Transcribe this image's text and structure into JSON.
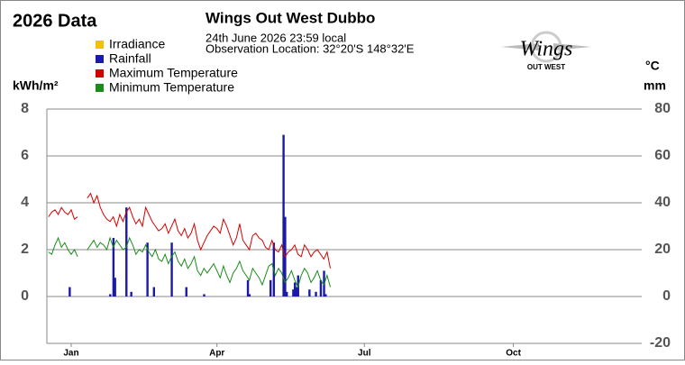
{
  "logo": {
    "text": "Wings",
    "subtext": "OUT WEST"
  },
  "chart_data": {
    "type": "line",
    "title": "2026 Data",
    "station": "Wings Out West Dubbo",
    "subtitle": "24th June 2026  23:59 local",
    "location": "Observation Location: 32°20'S 148°32'E",
    "y_label": "kWh/m²",
    "y2_label": "°C",
    "y2_label_2": "mm",
    "xlim": [
      0,
      365
    ],
    "xticks": [
      {
        "value": 15,
        "label": "Jan"
      },
      {
        "value": 105,
        "label": "Apr"
      },
      {
        "value": 196,
        "label": "Jul"
      },
      {
        "value": 288,
        "label": "Oct"
      }
    ],
    "ylim": [
      -2,
      8
    ],
    "yticks": [
      0,
      2,
      4,
      6,
      8
    ],
    "y2lim": [
      -20,
      80
    ],
    "y2ticks": [
      -20,
      0,
      20,
      40,
      60,
      80
    ],
    "grid": true,
    "x": [
      1,
      3,
      5,
      7,
      9,
      11,
      13,
      15,
      17,
      19,
      21,
      23,
      25,
      27,
      29,
      31,
      33,
      35,
      37,
      39,
      41,
      43,
      45,
      47,
      49,
      51,
      53,
      55,
      57,
      59,
      61,
      63,
      65,
      67,
      69,
      71,
      73,
      75,
      77,
      79,
      81,
      83,
      85,
      87,
      89,
      91,
      93,
      95,
      97,
      99,
      101,
      103,
      105,
      107,
      109,
      111,
      113,
      115,
      117,
      119,
      121,
      123,
      125,
      127,
      129,
      131,
      133,
      135,
      137,
      139,
      141,
      143,
      145,
      147,
      149,
      151,
      153,
      155,
      157,
      159,
      161,
      163,
      165,
      167,
      169,
      171,
      173,
      175
    ],
    "series": [
      {
        "name": "Irradiance",
        "color": "#f2c200",
        "type": "bar",
        "x": [],
        "values": []
      },
      {
        "name": "Rainfall",
        "color": "#1a1aa8",
        "type": "bar",
        "axis": "y2",
        "x": [
          14,
          39,
          41,
          42,
          49,
          52,
          62,
          66,
          77,
          86,
          97,
          124,
          125,
          138,
          140,
          146,
          147,
          148,
          152,
          153,
          154,
          155,
          162,
          166,
          169,
          171,
          172
        ],
        "values": [
          4,
          1,
          25,
          8,
          38,
          2,
          23,
          4,
          23,
          4,
          1,
          7,
          1,
          7,
          23,
          69,
          34,
          2,
          3,
          6,
          4,
          9,
          3,
          2,
          7,
          11,
          1
        ]
      },
      {
        "name": "Maximum Temperature",
        "color": "#d40000",
        "type": "line",
        "axis": "y2",
        "values": [
          34,
          36,
          37,
          35,
          38,
          36,
          35,
          37,
          33,
          34,
          null,
          null,
          42,
          44,
          40,
          43,
          38,
          35,
          33,
          32,
          34,
          30,
          35,
          32,
          36,
          38,
          34,
          31,
          33,
          30,
          38,
          35,
          32,
          30,
          28,
          29,
          31,
          27,
          30,
          33,
          28,
          26,
          29,
          25,
          27,
          31,
          24,
          20,
          23,
          26,
          28,
          30,
          29,
          27,
          33,
          30,
          26,
          22,
          25,
          31,
          24,
          22,
          20,
          26,
          27,
          25,
          24,
          21,
          20,
          24,
          20,
          19,
          22,
          17,
          19,
          20,
          22,
          18,
          17,
          22,
          20,
          17,
          19,
          20,
          18,
          16,
          19,
          12
        ]
      },
      {
        "name": "Minimum Temperature",
        "color": "#1a8c1a",
        "type": "line",
        "axis": "y2",
        "values": [
          19,
          18,
          22,
          25,
          21,
          23,
          20,
          18,
          20,
          17,
          null,
          null,
          20,
          22,
          24,
          21,
          23,
          22,
          20,
          25,
          21,
          24,
          22,
          20,
          21,
          25,
          22,
          18,
          20,
          19,
          22,
          19,
          17,
          20,
          16,
          15,
          18,
          14,
          17,
          19,
          15,
          13,
          16,
          12,
          14,
          17,
          11,
          9,
          12,
          10,
          12,
          14,
          11,
          8,
          13,
          9,
          6,
          10,
          12,
          15,
          11,
          9,
          7,
          12,
          10,
          8,
          5,
          9,
          13,
          14,
          9,
          12,
          10,
          6,
          8,
          11,
          7,
          4,
          9,
          12,
          10,
          6,
          8,
          11,
          7,
          5,
          9,
          4
        ]
      }
    ]
  }
}
